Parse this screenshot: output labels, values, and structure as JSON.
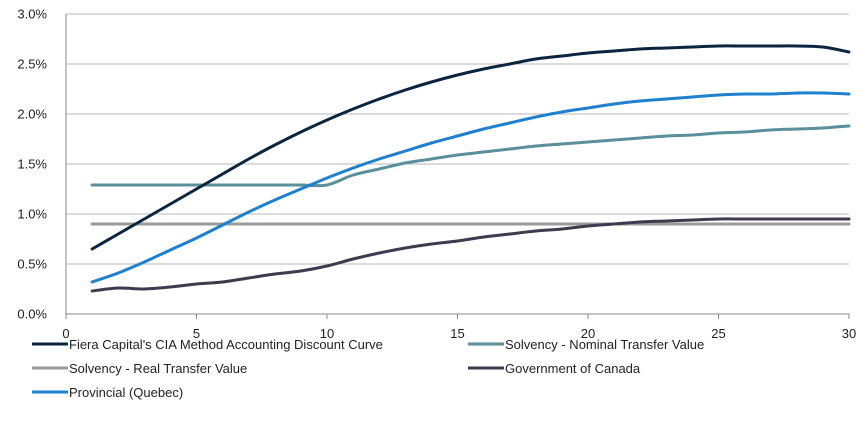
{
  "chart_data": {
    "type": "line",
    "title": "",
    "xlabel": "",
    "ylabel": "",
    "xlim": [
      0,
      30
    ],
    "ylim": [
      0,
      3.0
    ],
    "x_ticks": [
      "0",
      "5",
      "10",
      "15",
      "20",
      "25",
      "30"
    ],
    "y_ticks": [
      "0.0%",
      "0.5%",
      "1.0%",
      "1.5%",
      "2.0%",
      "2.5%",
      "3.0%"
    ],
    "grid": "horizontal",
    "legend_position": "bottom",
    "series": [
      {
        "name": "Fiera Capital's CIA Method Accounting Discount Curve",
        "color": "#0b2540",
        "x": [
          1,
          2,
          3,
          4,
          5,
          6,
          7,
          8,
          9,
          10,
          11,
          12,
          13,
          14,
          15,
          16,
          17,
          18,
          19,
          20,
          21,
          22,
          23,
          24,
          25,
          26,
          27,
          28,
          29,
          30
        ],
        "y": [
          0.65,
          0.8,
          0.95,
          1.1,
          1.25,
          1.4,
          1.55,
          1.69,
          1.82,
          1.94,
          2.05,
          2.15,
          2.24,
          2.32,
          2.39,
          2.45,
          2.5,
          2.55,
          2.58,
          2.61,
          2.63,
          2.65,
          2.66,
          2.67,
          2.68,
          2.68,
          2.68,
          2.68,
          2.67,
          2.62
        ]
      },
      {
        "name": "Solvency - Nominal Transfer Value",
        "color": "#5b8f9b",
        "x": [
          1,
          2,
          3,
          4,
          5,
          6,
          7,
          8,
          9,
          10,
          11,
          12,
          13,
          14,
          15,
          16,
          17,
          18,
          19,
          20,
          21,
          22,
          23,
          24,
          25,
          26,
          27,
          28,
          29,
          30
        ],
        "y": [
          1.29,
          1.29,
          1.29,
          1.29,
          1.29,
          1.29,
          1.29,
          1.29,
          1.29,
          1.29,
          1.39,
          1.45,
          1.51,
          1.55,
          1.59,
          1.62,
          1.65,
          1.68,
          1.7,
          1.72,
          1.74,
          1.76,
          1.78,
          1.79,
          1.81,
          1.82,
          1.84,
          1.85,
          1.86,
          1.88
        ]
      },
      {
        "name": "Solvency - Real Transfer Value",
        "color": "#9a9a9a",
        "x": [
          1,
          5,
          10,
          15,
          20,
          25,
          30
        ],
        "y": [
          0.9,
          0.9,
          0.9,
          0.9,
          0.9,
          0.9,
          0.9
        ]
      },
      {
        "name": "Government of Canada",
        "color": "#3f3a4f",
        "x": [
          1,
          2,
          3,
          4,
          5,
          6,
          7,
          8,
          9,
          10,
          11,
          12,
          13,
          14,
          15,
          16,
          17,
          18,
          19,
          20,
          21,
          22,
          23,
          24,
          25,
          26,
          27,
          28,
          29,
          30
        ],
        "y": [
          0.23,
          0.26,
          0.25,
          0.27,
          0.3,
          0.32,
          0.36,
          0.4,
          0.43,
          0.48,
          0.55,
          0.61,
          0.66,
          0.7,
          0.73,
          0.77,
          0.8,
          0.83,
          0.85,
          0.88,
          0.9,
          0.92,
          0.93,
          0.94,
          0.95,
          0.95,
          0.95,
          0.95,
          0.95,
          0.95
        ]
      },
      {
        "name": "Provincial (Quebec)",
        "color": "#1f80cf",
        "x": [
          1,
          2,
          3,
          4,
          5,
          6,
          7,
          8,
          9,
          10,
          11,
          12,
          13,
          14,
          15,
          16,
          17,
          18,
          19,
          20,
          21,
          22,
          23,
          24,
          25,
          26,
          27,
          28,
          29,
          30
        ],
        "y": [
          0.32,
          0.41,
          0.52,
          0.64,
          0.76,
          0.89,
          1.02,
          1.14,
          1.25,
          1.36,
          1.46,
          1.55,
          1.63,
          1.71,
          1.78,
          1.85,
          1.91,
          1.97,
          2.02,
          2.06,
          2.1,
          2.13,
          2.15,
          2.17,
          2.19,
          2.2,
          2.2,
          2.21,
          2.21,
          2.2
        ]
      }
    ]
  }
}
